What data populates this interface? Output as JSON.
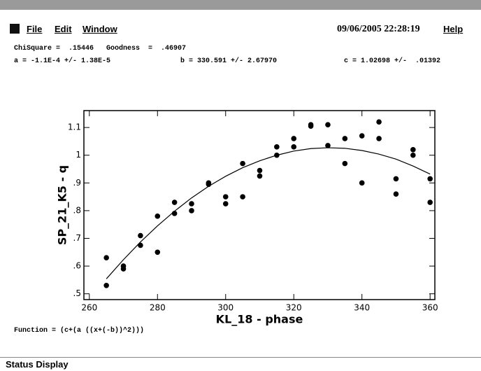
{
  "menu": {
    "items": [
      "File",
      "Edit",
      "Window"
    ],
    "datetime": "09/06/2005 22:28:19",
    "help": "Help"
  },
  "fit_stats": {
    "line1": "ChiSquare =  .15446   Goodness  =  .46907",
    "a": "a = -1.1E-4 +/- 1.38E-5",
    "b": "b = 330.591 +/- 2.67970",
    "c": "c = 1.02698 +/-  .01392"
  },
  "function": "Function = (c+(a ((x+(-b))^2)))",
  "status": "Status Display",
  "chart_data": {
    "type": "scatter",
    "x_label": "KL_18 - phase",
    "y_label": "SP_21_K5 - q",
    "xlim": [
      258.4,
      361.4
    ],
    "ylim": [
      0.479,
      1.161
    ],
    "xticks": [
      260,
      280,
      300,
      320,
      340,
      360
    ],
    "yticks": [
      {
        "value": 0.5,
        "label": ".5"
      },
      {
        "value": 0.6,
        "label": ".6"
      },
      {
        "value": 0.7,
        "label": ".7"
      },
      {
        "value": 0.8,
        "label": ".8"
      },
      {
        "value": 0.9,
        "label": ".9"
      },
      1,
      1.1
    ],
    "series": [
      {
        "color": "#000000",
        "x": [
          265,
          265,
          270,
          270,
          275,
          275,
          280,
          280,
          285,
          285,
          290,
          290,
          295,
          295,
          300,
          300,
          305,
          305,
          310,
          310,
          315,
          315,
          320,
          320,
          325,
          325,
          330,
          330,
          335,
          335,
          340,
          340,
          345,
          345,
          350,
          350,
          355,
          355,
          360,
          360
        ],
        "values": [
          0.63,
          0.53,
          0.6,
          0.59,
          0.71,
          0.675,
          0.78,
          0.65,
          0.83,
          0.79,
          0.825,
          0.8,
          0.9,
          0.895,
          0.85,
          0.825,
          0.97,
          0.85,
          0.945,
          0.925,
          1.03,
          1.0,
          1.06,
          1.03,
          1.11,
          1.105,
          1.11,
          1.035,
          1.06,
          0.97,
          1.07,
          0.9,
          1.12,
          1.06,
          0.915,
          0.86,
          1.02,
          1.0,
          0.915,
          0.83
        ]
      }
    ],
    "fit": {
      "color": "#000000",
      "x": [
        265,
        270,
        275,
        280,
        285,
        290,
        295,
        300,
        305,
        310,
        315,
        320,
        325,
        330,
        335,
        340,
        345,
        350,
        355,
        360
      ],
      "values": [
        0.554,
        0.623,
        0.687,
        0.745,
        0.798,
        0.846,
        0.888,
        0.924,
        0.955,
        0.98,
        1.0,
        1.015,
        1.024,
        1.027,
        1.025,
        1.017,
        1.004,
        0.986,
        0.961,
        0.932
      ]
    }
  }
}
